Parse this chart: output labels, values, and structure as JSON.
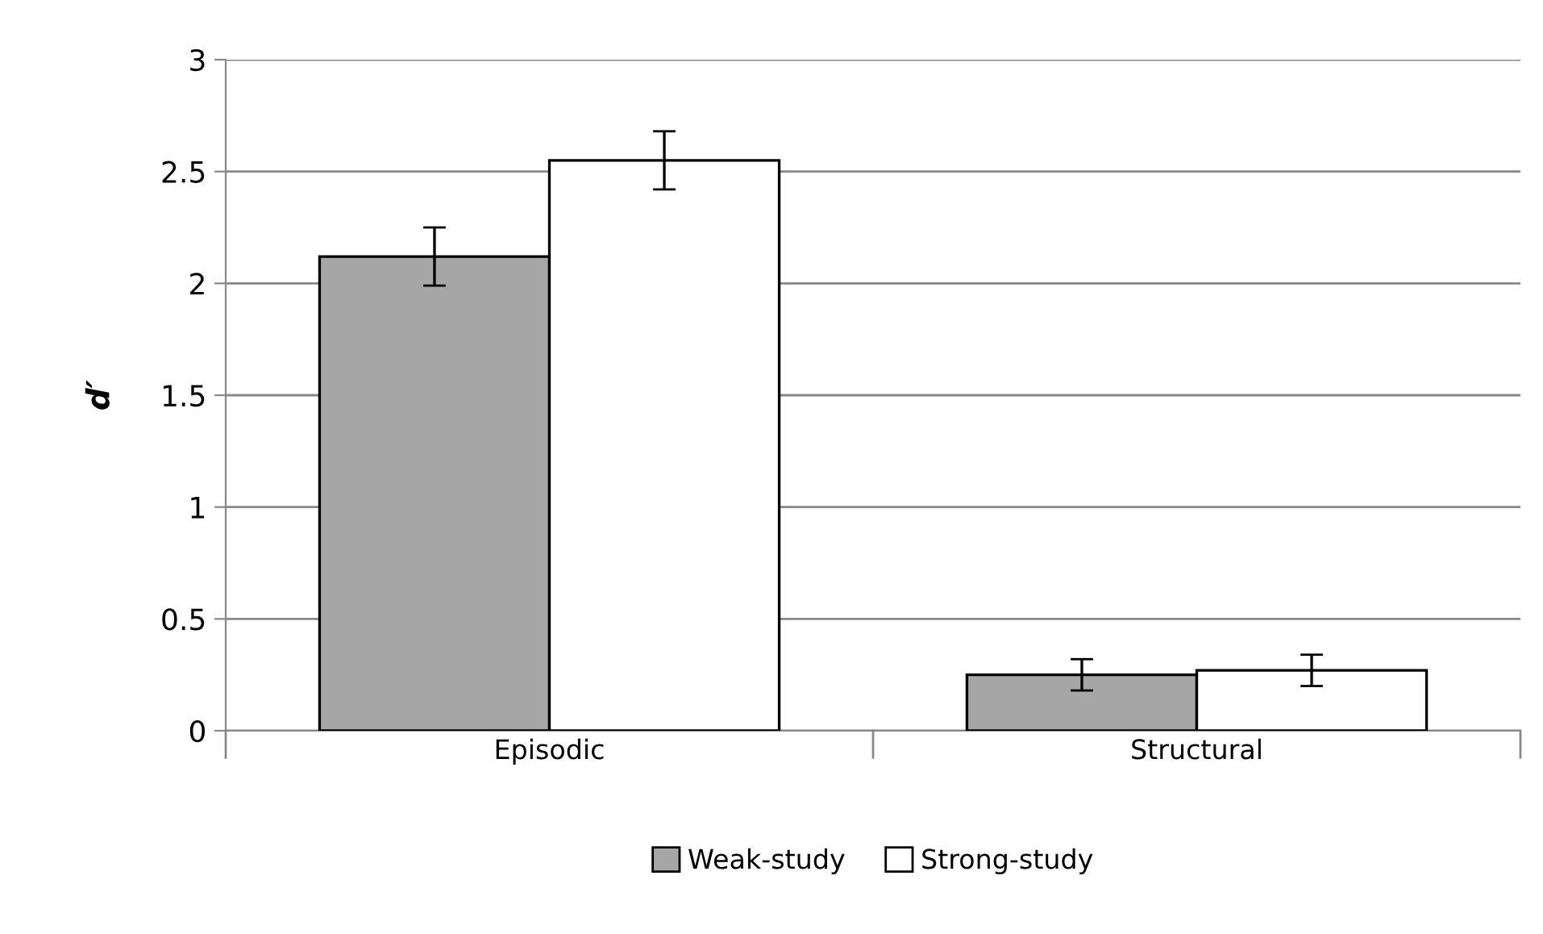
{
  "chart_data": {
    "type": "bar",
    "ylabel": "d′",
    "categories": [
      "Episodic",
      "Structural"
    ],
    "series": [
      {
        "name": "Weak-study",
        "color": "#a6a6a6",
        "values": [
          2.12,
          0.25
        ],
        "errors": [
          0.13,
          0.07
        ]
      },
      {
        "name": "Strong-study",
        "color": "#ffffff",
        "values": [
          2.55,
          0.27
        ],
        "errors": [
          0.13,
          0.07
        ]
      }
    ],
    "ylim": [
      0,
      3
    ],
    "yticks": [
      0,
      0.5,
      1,
      1.5,
      2,
      2.5,
      3
    ],
    "grid": "y",
    "legend": "bottom"
  }
}
